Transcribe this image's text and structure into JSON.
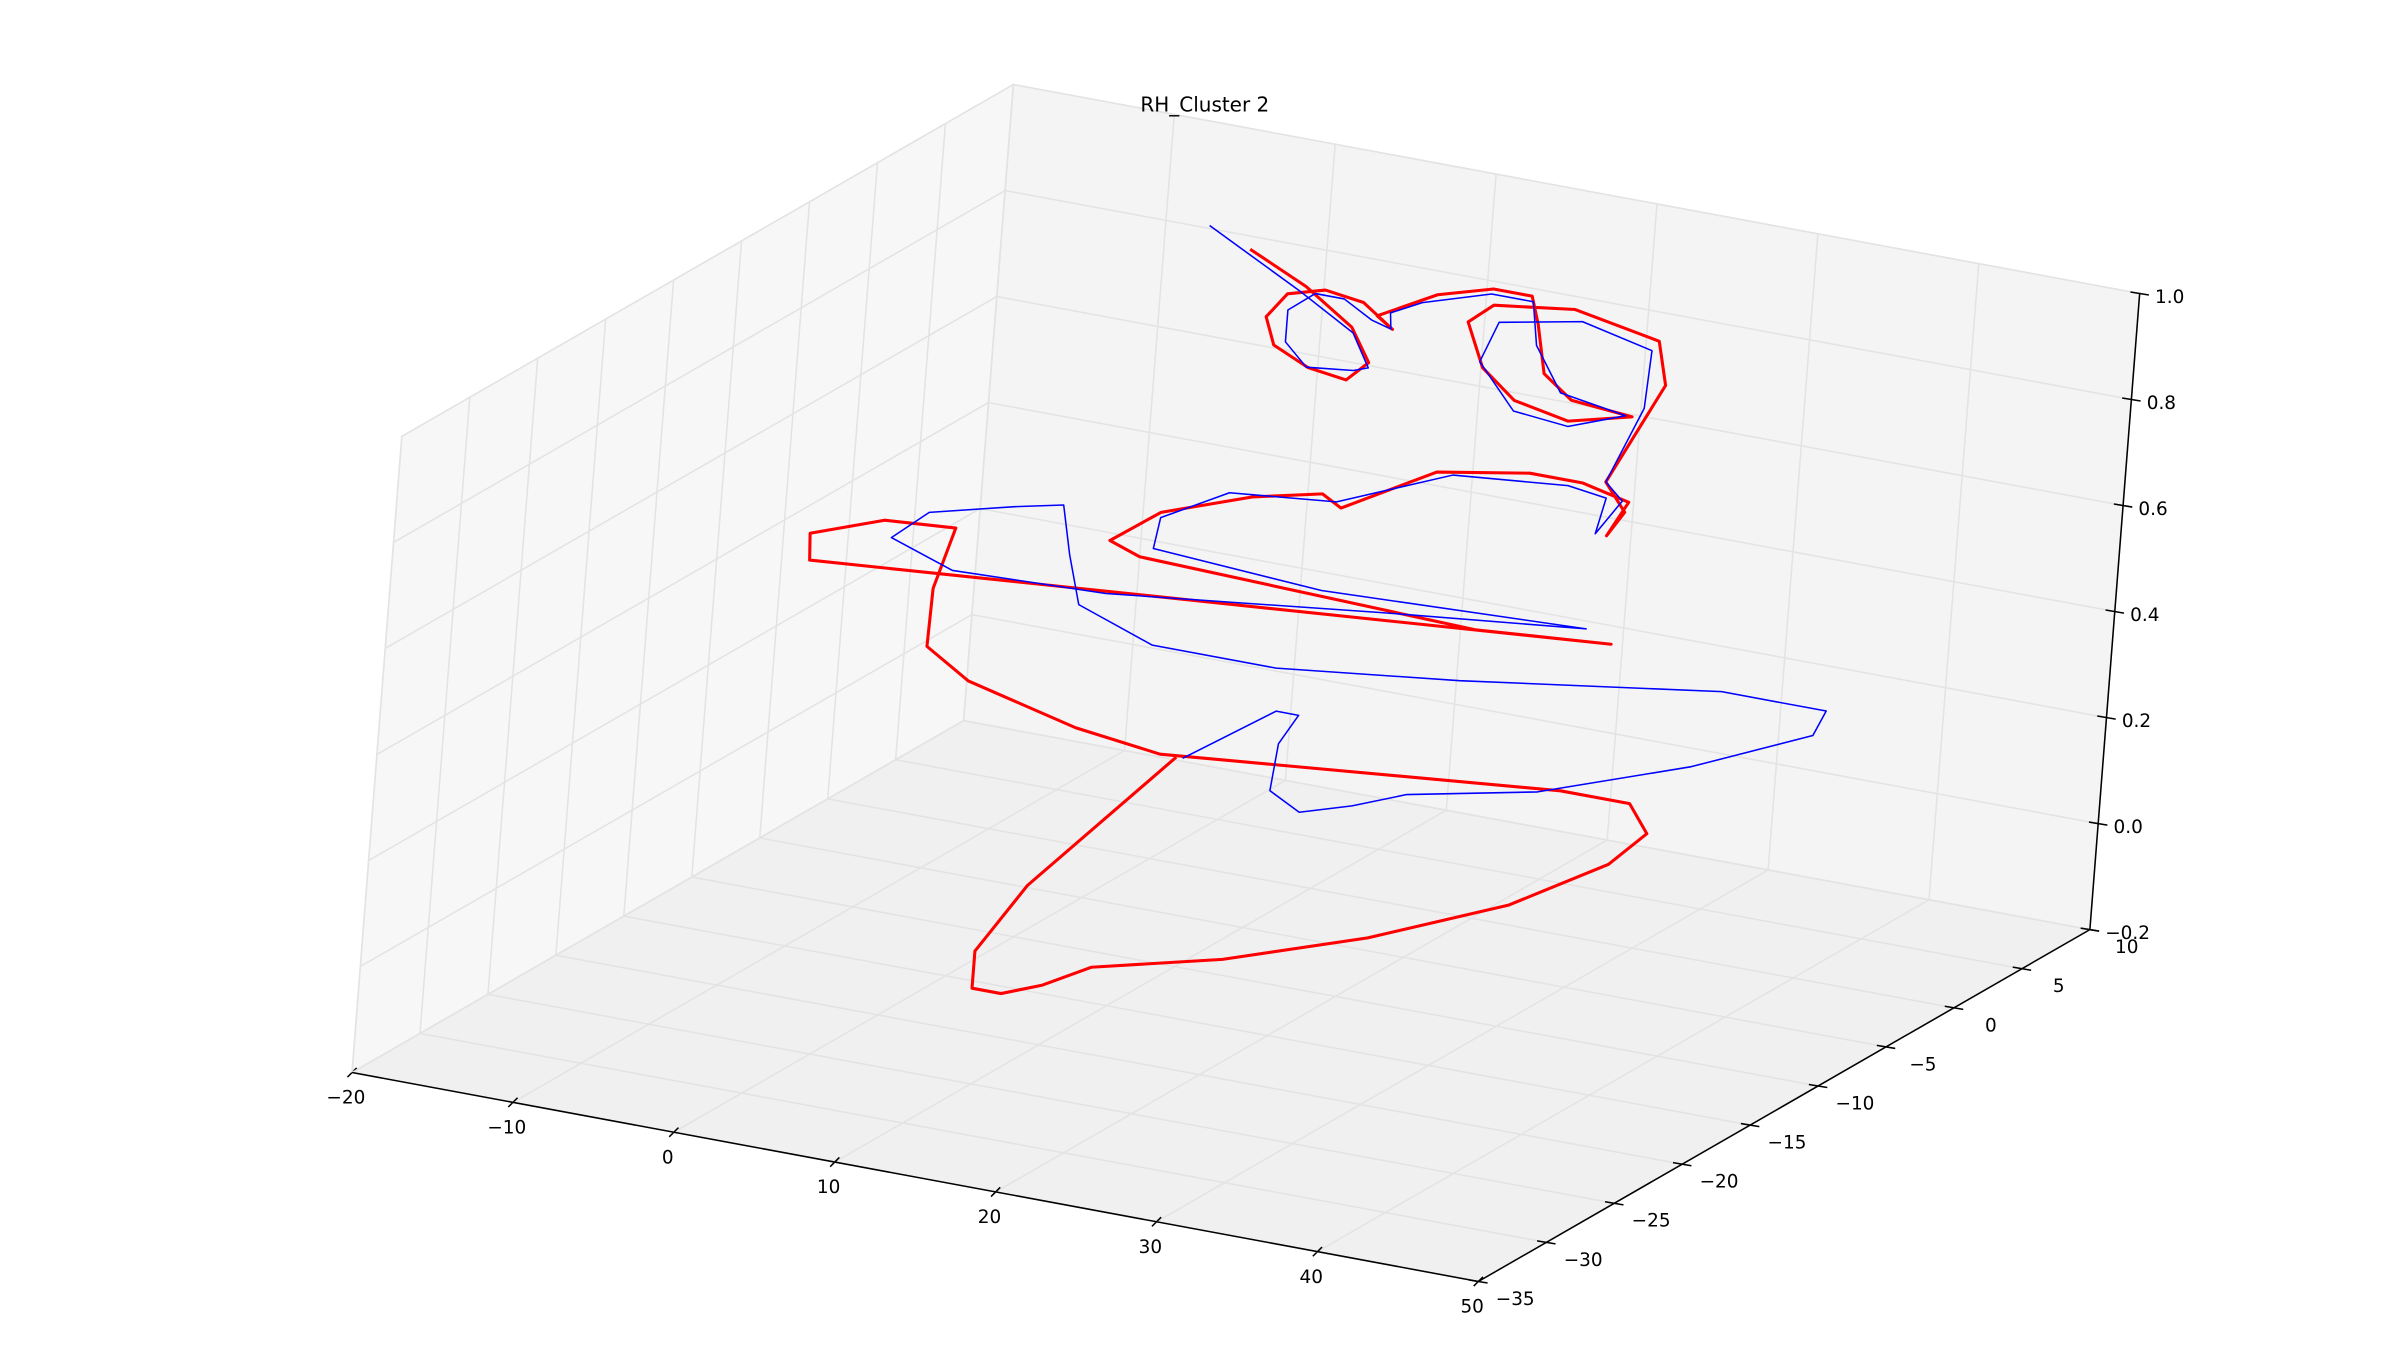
{
  "chart_data": {
    "type": "line3d",
    "title": "RH_Cluster 2",
    "xlim": [
      -20,
      50
    ],
    "ylim": [
      -35,
      10
    ],
    "zlim": [
      -0.2,
      1.0
    ],
    "xticks": [
      {
        "value": -20,
        "label": "−20"
      },
      {
        "value": -10,
        "label": "−10"
      },
      0,
      10,
      20,
      30,
      40,
      50
    ],
    "yticks": [
      {
        "value": -35,
        "label": "−35"
      },
      {
        "value": -30,
        "label": "−30"
      },
      {
        "value": -25,
        "label": "−25"
      },
      {
        "value": -20,
        "label": "−20"
      },
      {
        "value": -15,
        "label": "−15"
      },
      {
        "value": -10,
        "label": "−10"
      },
      {
        "value": -5,
        "label": "−5"
      },
      0,
      5,
      10
    ],
    "zticks": [
      {
        "value": -0.2,
        "label": "−0.2"
      },
      {
        "value": 0.0,
        "label": "0.0"
      },
      {
        "value": 0.2,
        "label": "0.2"
      },
      {
        "value": 0.4,
        "label": "0.4"
      },
      {
        "value": 0.6,
        "label": "0.6"
      },
      {
        "value": 0.8,
        "label": "0.8"
      },
      {
        "value": 1.0,
        "label": "1.0"
      }
    ],
    "grid": true,
    "series": [
      {
        "color": "#ff0000",
        "x": [
          11.2,
          14.8,
          17.8,
          19.0,
          17.7,
          15.3,
          13.1,
          12.5,
          13.7,
          16.0,
          18.4,
          20.3,
          19.3,
          22.9,
          26.3,
          28.7,
          29.2,
          29.8,
          31.6,
          35.4,
          31.5,
          28.1,
          26.0,
          24.9,
          26.4,
          31.4,
          36.7,
          37.3,
          34.1,
          35.4,
          34.4,
          35.6,
          32.7,
          29.4,
          23.7,
          18.0,
          16.8,
          12.5,
          7.0,
          4.0,
          5.9,
          26.8,
          35.2,
          -14.3,
          -14.4,
          -9.9,
          -5.5,
          -6.6,
          -6.7,
          -4.0,
          2.8,
          8.1,
          32.8,
          37.1,
          38.3,
          36.1,
          30.2,
          21.7,
          12.9,
          4.9,
          2.0,
          -0.5,
          -2.3,
          -2.3,
          0.6,
          9.1
        ],
        "y": [
          -10,
          -10,
          -10,
          -10,
          -10,
          -10,
          -10,
          -10,
          -10,
          -10,
          -10,
          -10,
          -10,
          -10,
          -10,
          -10,
          -10,
          -10,
          -10,
          -10,
          -10,
          -10,
          -10,
          -10,
          -10,
          -10,
          -10,
          -10,
          -10,
          -10,
          -10,
          -10,
          -10,
          -10,
          -10,
          -10,
          -10,
          -10,
          -10,
          -10,
          -10,
          -10,
          -10,
          -10,
          -10,
          -10,
          -10,
          -10,
          -10,
          -10,
          -10,
          -10,
          -10,
          -10,
          -10,
          -10,
          -10,
          -10,
          -10,
          -10,
          -10,
          -10,
          -10,
          -10,
          -10,
          -10
        ],
        "z": [
          1.16,
          1.11,
          1.05,
          0.99,
          0.95,
          0.96,
          0.99,
          1.04,
          1.09,
          1.11,
          1.1,
          1.06,
          1.08,
          1.14,
          1.17,
          1.17,
          1.12,
          1.03,
          0.99,
          0.98,
          0.95,
          0.97,
          1.02,
          1.1,
          1.14,
          1.16,
          1.13,
          1.05,
          0.85,
          0.8,
          0.75,
          0.82,
          0.84,
          0.84,
          0.81,
          0.71,
          0.73,
          0.7,
          0.64,
          0.57,
          0.55,
          0.53,
          0.55,
          0.43,
          0.48,
          0.53,
          0.54,
          0.42,
          0.31,
          0.26,
          0.21,
          0.19,
          0.26,
          0.26,
          0.21,
          0.14,
          0.03,
          -0.08,
          -0.17,
          -0.23,
          -0.28,
          -0.31,
          -0.31,
          -0.24,
          -0.1,
          0.19
        ],
        "width": 2
      },
      {
        "color": "#0000ff",
        "x": [
          8.6,
          14.4,
          17.9,
          19.0,
          18.1,
          15.2,
          13.8,
          13.8,
          15.4,
          17.2,
          19.0,
          20.2,
          20.1,
          22.0,
          26.2,
          28.8,
          29.2,
          30.9,
          35.0,
          31.5,
          28.1,
          25.8,
          26.8,
          31.9,
          36.3,
          36.1,
          34.1,
          35.2,
          33.7,
          34.2,
          31.8,
          24.7,
          17.7,
          11.1,
          7.0,
          6.7,
          17.2,
          33.6,
          21.1,
          4.0,
          -5.5,
          -9.4,
          -7.2,
          -2.0,
          1.0,
          1.6,
          2.4,
          7.1,
          14.8,
          26.1,
          42.2,
          48.7,
          48.0,
          40.7,
          31.4,
          23.4,
          20.1,
          16.9,
          15.0,
          15.3,
          16.4,
          15.0,
          9.5
        ],
        "y": [
          -10,
          -10,
          -10,
          -10,
          -10,
          -10,
          -10,
          -10,
          -10,
          -10,
          -10,
          -10,
          -10,
          -10,
          -10,
          -10,
          -10,
          -10,
          -10,
          -10,
          -10,
          -10,
          -10,
          -10,
          -10,
          -10,
          -10,
          -10,
          -10,
          -10,
          -10,
          -10,
          -10,
          -10,
          -10,
          -10,
          -10,
          -10,
          -10,
          -10,
          -10,
          -10,
          -10,
          -10,
          -10,
          -10,
          -10,
          -10,
          -10,
          -10,
          -10,
          -10,
          -10,
          -10,
          -10,
          -10,
          -10,
          -10,
          -10,
          -10,
          -10,
          -10,
          -10
        ],
        "z": [
          1.19,
          1.1,
          1.04,
          0.98,
          0.97,
          0.96,
          1.0,
          1.06,
          1.1,
          1.1,
          1.07,
          1.06,
          1.09,
          1.12,
          1.16,
          1.16,
          1.08,
          1.0,
          0.98,
          0.94,
          0.95,
          1.03,
          1.11,
          1.14,
          1.11,
          1.0,
          0.85,
          0.82,
          0.75,
          0.82,
          0.83,
          0.81,
          0.72,
          0.7,
          0.63,
          0.57,
          0.55,
          0.57,
          0.53,
          0.47,
          0.46,
          0.5,
          0.56,
          0.6,
          0.62,
          0.53,
          0.44,
          0.39,
          0.39,
          0.43,
          0.5,
          0.5,
          0.45,
          0.35,
          0.25,
          0.2,
          0.16,
          0.13,
          0.16,
          0.25,
          0.31,
          0.31,
          0.19
        ],
        "width": 1
      }
    ]
  }
}
